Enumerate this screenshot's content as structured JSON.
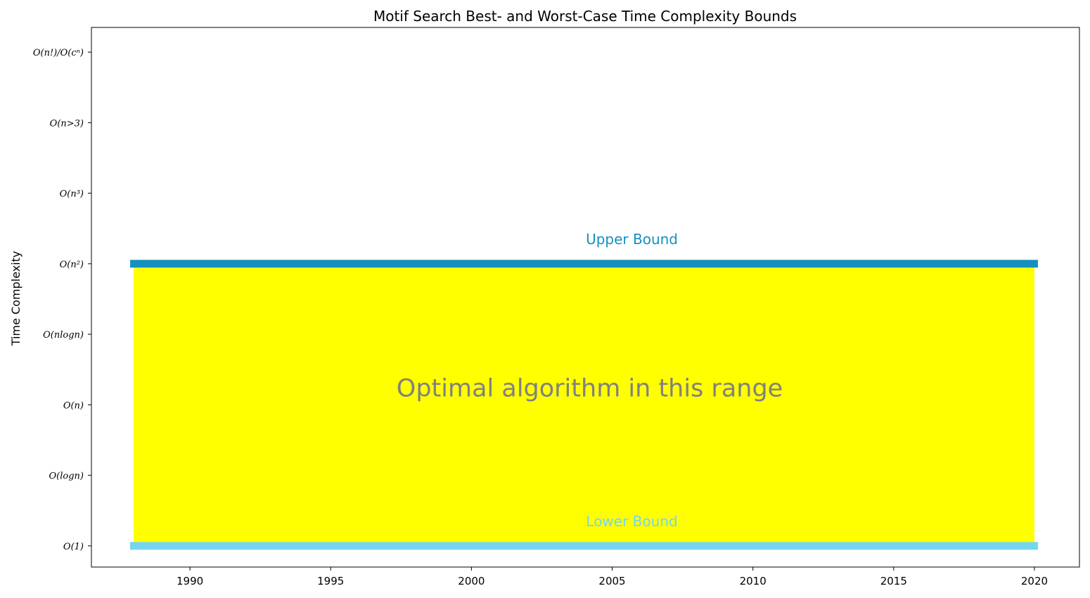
{
  "chart_data": {
    "type": "area",
    "title": "Motif Search Best- and Worst-Case Time Complexity Bounds",
    "xlabel": "",
    "ylabel": "Time Complexity",
    "xlim": [
      1986.5,
      2021.6
    ],
    "ylim": [
      -0.3,
      7.35
    ],
    "x_ticks": [
      1990,
      1995,
      2000,
      2005,
      2010,
      2015,
      2020
    ],
    "y_ticks": [
      {
        "value": 0,
        "label": "O(1)"
      },
      {
        "value": 1,
        "label": "O(logn)"
      },
      {
        "value": 2,
        "label": "O(n)"
      },
      {
        "value": 3,
        "label": "O(nlogn)"
      },
      {
        "value": 4,
        "label": "O(n²)"
      },
      {
        "value": 5,
        "label": "O(n³)"
      },
      {
        "value": 6,
        "label": "O(n⁣>3)"
      },
      {
        "value": 7,
        "label": "O(n!)/O(cⁿ)"
      }
    ],
    "x_range": [
      1988,
      2020
    ],
    "series": [
      {
        "name": "Upper Bound",
        "x": [
          1988,
          2020
        ],
        "y": [
          4,
          4
        ],
        "color": "#1490bf"
      },
      {
        "name": "Lower Bound",
        "x": [
          1988,
          2020
        ],
        "y": [
          0,
          0
        ],
        "color": "#75d5f1"
      }
    ],
    "fill": {
      "from": 0,
      "to": 4,
      "x": [
        1988,
        2020
      ],
      "color": "#ffff00"
    },
    "annotations": [
      {
        "text": "Upper Bound",
        "x": 2005.7,
        "y": 4.28,
        "color": "#1490bf"
      },
      {
        "text": "Lower Bound",
        "x": 2005.7,
        "y": 0.28,
        "color": "#75d5f1"
      },
      {
        "text": "Optimal algorithm in this range",
        "x": 2004.2,
        "y": 2.12,
        "color": "#808080"
      }
    ],
    "grid": false,
    "legend": "none"
  }
}
